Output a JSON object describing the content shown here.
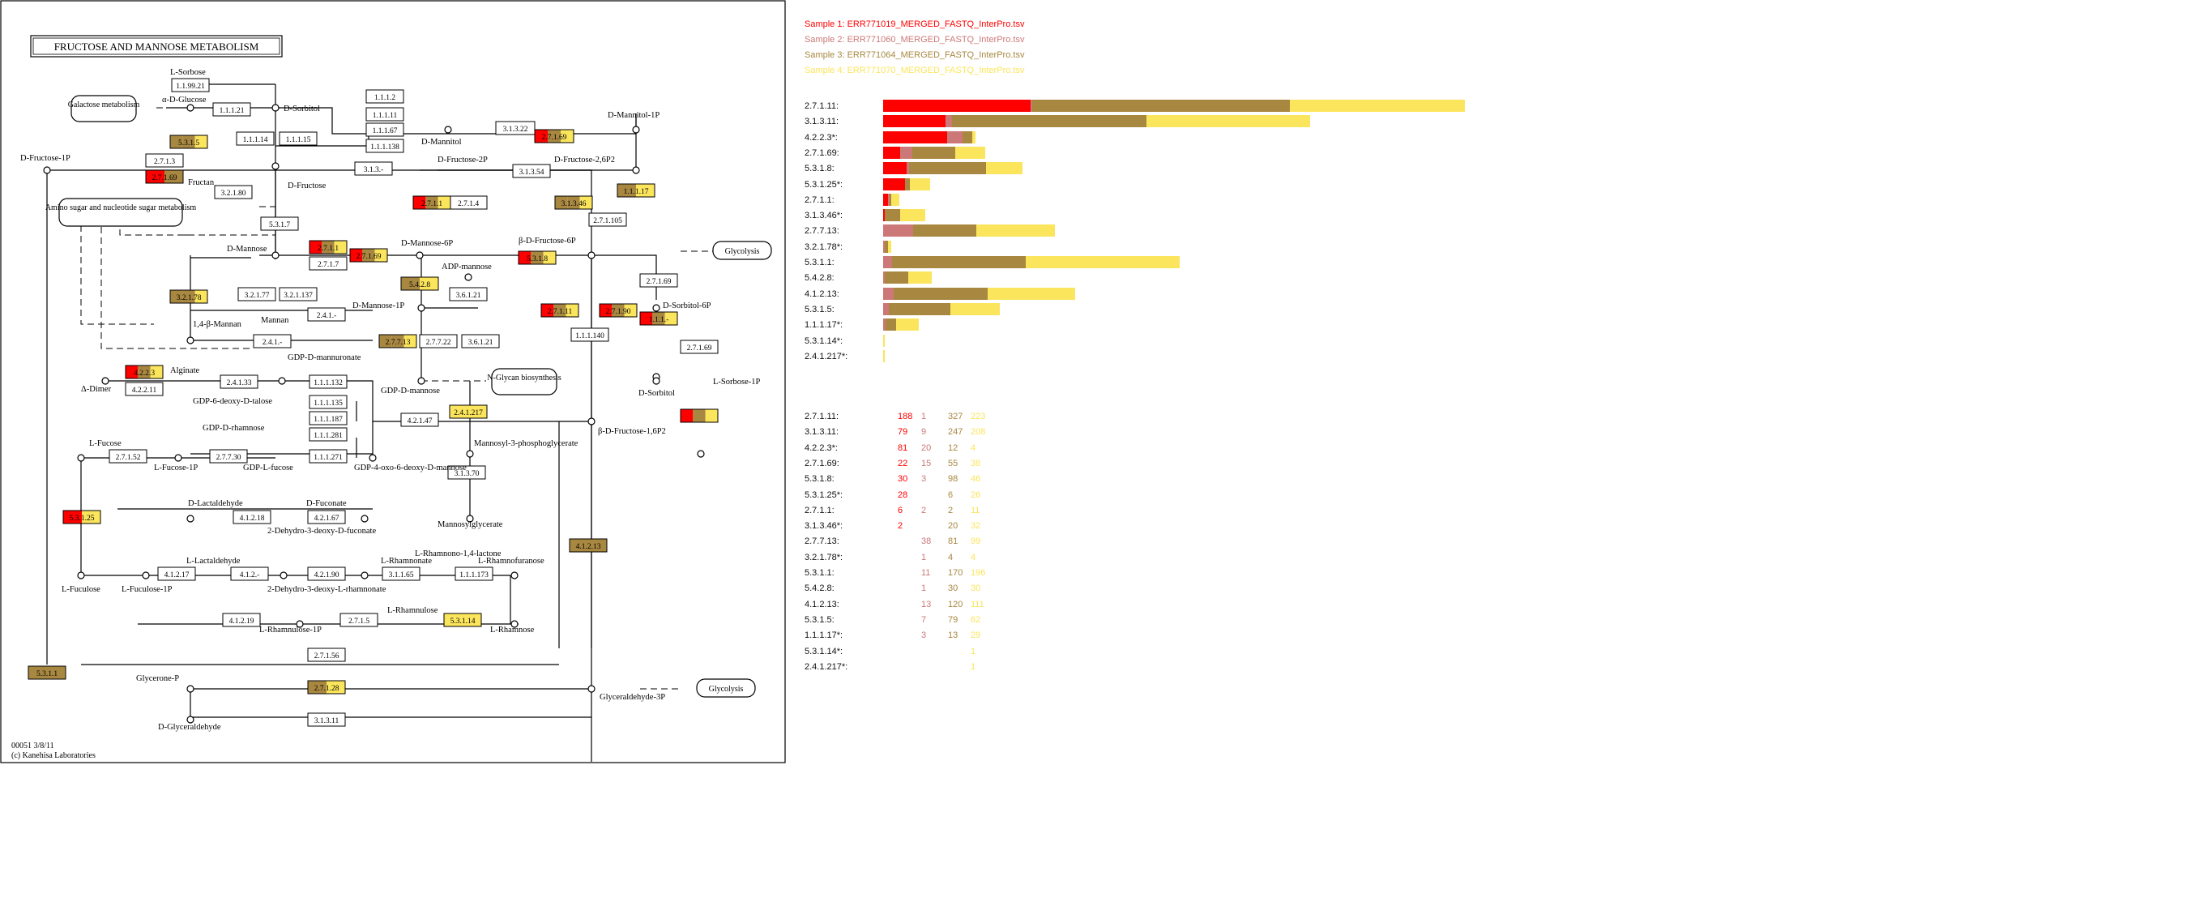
{
  "map": {
    "title": "FRUCTOSE AND MANNOSE METABOLISM",
    "footer_line1": "00051 3/8/11",
    "footer_line2": "(c) Kanehisa Laboratories",
    "compounds": [
      "L-Sorbose",
      "α-D-Glucose",
      "D-Sorbitol",
      "D-Mannitol-1P",
      "D-Mannitol",
      "D-Fructose-1P",
      "Fructan",
      "D-Fructose",
      "D-Fructose-2P",
      "D-Fructose-2,6P2",
      "D-Mannose",
      "D-Mannose-6P",
      "ADP-mannose",
      "β-D-Fructose-6P",
      "Mannan",
      "D-Mannose-1P",
      "1,4-β-Mannan",
      "GDP-D-mannuronate",
      "Alginate",
      "Δ-Dimer",
      "GDP-6-deoxy-D-talose",
      "GDP-D-mannose",
      "GDP-D-rhamnose",
      "Mannosyl-3-phosphoglycerate",
      "GDP-4-oxo-6-deoxy-D-mannose",
      "L-Fucose",
      "L-Fucose-1P",
      "GDP-L-fucose",
      "Mannosylglycerate",
      "D-Lactaldehyde",
      "D-Fuconate",
      "2-Dehydro-3-deoxy-D-fuconate",
      "L-Lactaldehyde",
      "L-Rhamnono-1,4-lactone",
      "L-Rhamnofuranose",
      "L-Rhamnonate",
      "L-Fuculose",
      "L-Fuculose-1P",
      "2-Dehydro-3-deoxy-L-rhamnonate",
      "L-Rhamnulose",
      "L-Rhamnulose-1P",
      "L-Rhamnose",
      "Glycerone-P",
      "D-Glyceraldehyde",
      "Glyceraldehyde-3P",
      "D-Sorbitol-6P",
      "D-Sorbitol",
      "L-Sorbose-1P",
      "β-D-Fructose-1,6P2"
    ],
    "pathway_links": [
      "Galactose metabolism",
      "Amino sugar and nucleotide sugar metabolism",
      "Glycolysis",
      "N-Glycan biosynthesis",
      "Glycolysis"
    ],
    "enzymes": [
      "1.1.99.21",
      "1.1.1.21",
      "1.1.1.14",
      "1.1.1.15",
      "1.1.1.2",
      "1.1.1.11",
      "1.1.1.67",
      "1.1.1.138",
      "3.1.3.22",
      "2.7.1.69",
      "5.3.1.5",
      "2.7.1.3",
      "2.7.1.69",
      "3.2.1.80",
      "3.1.3.-",
      "2.7.1.4",
      "3.1.3.54",
      "2.7.1.1",
      "3.1.3.46",
      "2.7.1.105",
      "1.1.1.17",
      "5.3.1.7",
      "2.7.1.1",
      "2.7.1.7",
      "2.7.1.69",
      "5.3.1.8",
      "3.6.1.21",
      "5.4.2.8",
      "3.2.1.78",
      "3.2.1.77",
      "3.2.1.137",
      "2.4.1.-",
      "2.7.7.13",
      "2.7.7.22",
      "3.6.1.21",
      "2.4.1.-",
      "4.2.2.3",
      "2.4.1.33",
      "1.1.1.132",
      "4.2.2.11",
      "1.1.1.135",
      "1.1.1.187",
      "1.1.1.281",
      "1.1.1.271",
      "4.2.1.47",
      "2.4.1.217",
      "2.7.1.52",
      "2.7.7.30",
      "3.1.3.70",
      "5.3.1.25",
      "4.1.2.18",
      "4.2.1.67",
      "4.1.2.17",
      "4.1.2.-",
      "4.2.1.90",
      "3.1.1.65",
      "1.1.1.173",
      "4.1.2.19",
      "2.7.1.5",
      "5.3.1.14",
      "2.7.1.56",
      "4.1.2.13",
      "5.3.1.1",
      "2.7.1.28",
      "3.1.3.11",
      "2.7.1.11",
      "2.7.1.90",
      "1.1.1.140",
      "2.7.1.69",
      "1.1.1.-",
      "2.7.1.69"
    ]
  },
  "samples": [
    {
      "label": "Sample 1: ERR771019_MERGED_FASTQ_InterPro.tsv",
      "color": "#ff0000"
    },
    {
      "label": "Sample 2: ERR771060_MERGED_FASTQ_InterPro.tsv",
      "color": "#cd7878"
    },
    {
      "label": "Sample 3: ERR771064_MERGED_FASTQ_InterPro.tsv",
      "color": "#a88740"
    },
    {
      "label": "Sample 4: ERR771070_MERGED_FASTQ_InterPro.tsv",
      "color": "#fbe55c"
    }
  ],
  "chart_data": {
    "type": "bar",
    "stacked": true,
    "orientation": "horizontal",
    "categories": [
      "2.7.1.11:",
      "3.1.3.11:",
      "4.2.2.3*:",
      "2.7.1.69:",
      "5.3.1.8:",
      "5.3.1.25*:",
      "2.7.1.1:",
      "3.1.3.46*:",
      "2.7.7.13:",
      "3.2.1.78*:",
      "5.3.1.1:",
      "5.4.2.8:",
      "4.1.2.13:",
      "5.3.1.5:",
      "1.1.1.17*:",
      "5.3.1.14*:",
      "2.4.1.217*:"
    ],
    "series": [
      {
        "name": "Sample 1: ERR771019_MERGED_FASTQ_InterPro.tsv",
        "values": [
          188,
          79,
          81,
          22,
          30,
          28,
          6,
          2,
          null,
          null,
          null,
          null,
          null,
          null,
          null,
          null,
          null
        ]
      },
      {
        "name": "Sample 2: ERR771060_MERGED_FASTQ_InterPro.tsv",
        "values": [
          1,
          9,
          20,
          15,
          3,
          null,
          2,
          null,
          38,
          1,
          11,
          1,
          13,
          7,
          3,
          null,
          null
        ]
      },
      {
        "name": "Sample 3: ERR771064_MERGED_FASTQ_InterPro.tsv",
        "values": [
          327,
          247,
          12,
          55,
          98,
          6,
          2,
          20,
          81,
          4,
          170,
          30,
          120,
          79,
          13,
          null,
          null
        ]
      },
      {
        "name": "Sample 4: ERR771070_MERGED_FASTQ_InterPro.tsv",
        "values": [
          223,
          208,
          4,
          38,
          46,
          26,
          11,
          32,
          99,
          4,
          196,
          30,
          111,
          62,
          29,
          1,
          1
        ]
      }
    ]
  }
}
